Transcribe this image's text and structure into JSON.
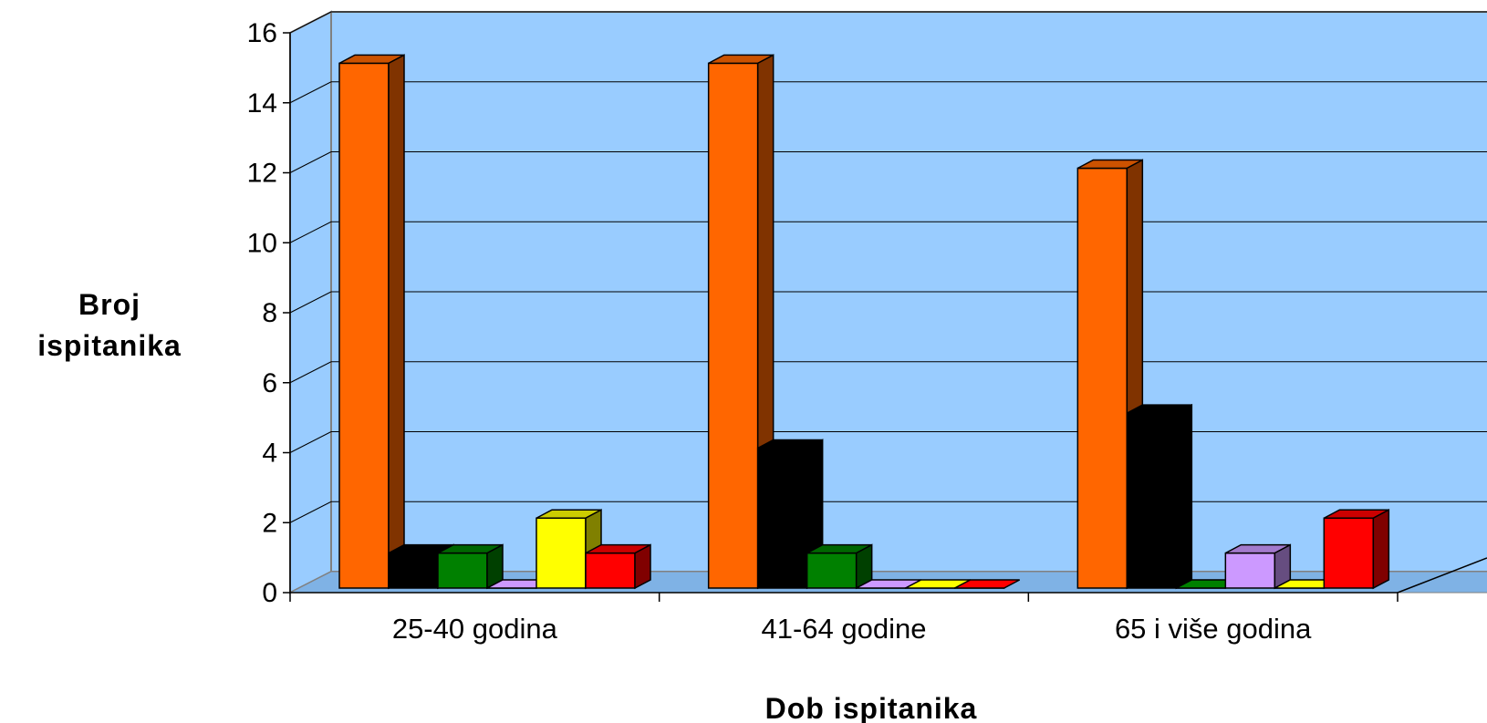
{
  "chart_data": {
    "type": "bar",
    "title": "",
    "xlabel": "Dob ispitanika",
    "ylabel_line1": "Broj",
    "ylabel_line2": "ispitanika",
    "ylim": [
      0,
      16
    ],
    "y_ticks": [
      "0",
      "2",
      "4",
      "6",
      "8",
      "10",
      "12",
      "14",
      "16"
    ],
    "categories": [
      "25-40 godina",
      "41-64 godine",
      "65 i više godina"
    ],
    "grid": true,
    "legend": "none",
    "wall_color": "#99CCFF",
    "series": [
      {
        "color": "#FF6600",
        "values": [
          15,
          15,
          12
        ]
      },
      {
        "color": "#000000",
        "values": [
          1,
          4,
          5
        ]
      },
      {
        "color": "#008000",
        "values": [
          1,
          1,
          0
        ]
      },
      {
        "color": "#CC99FF",
        "values": [
          0,
          0,
          1
        ]
      },
      {
        "color": "#FFFF00",
        "values": [
          2,
          0,
          0
        ]
      },
      {
        "color": "#FF0000",
        "values": [
          1,
          0,
          2
        ]
      }
    ]
  }
}
